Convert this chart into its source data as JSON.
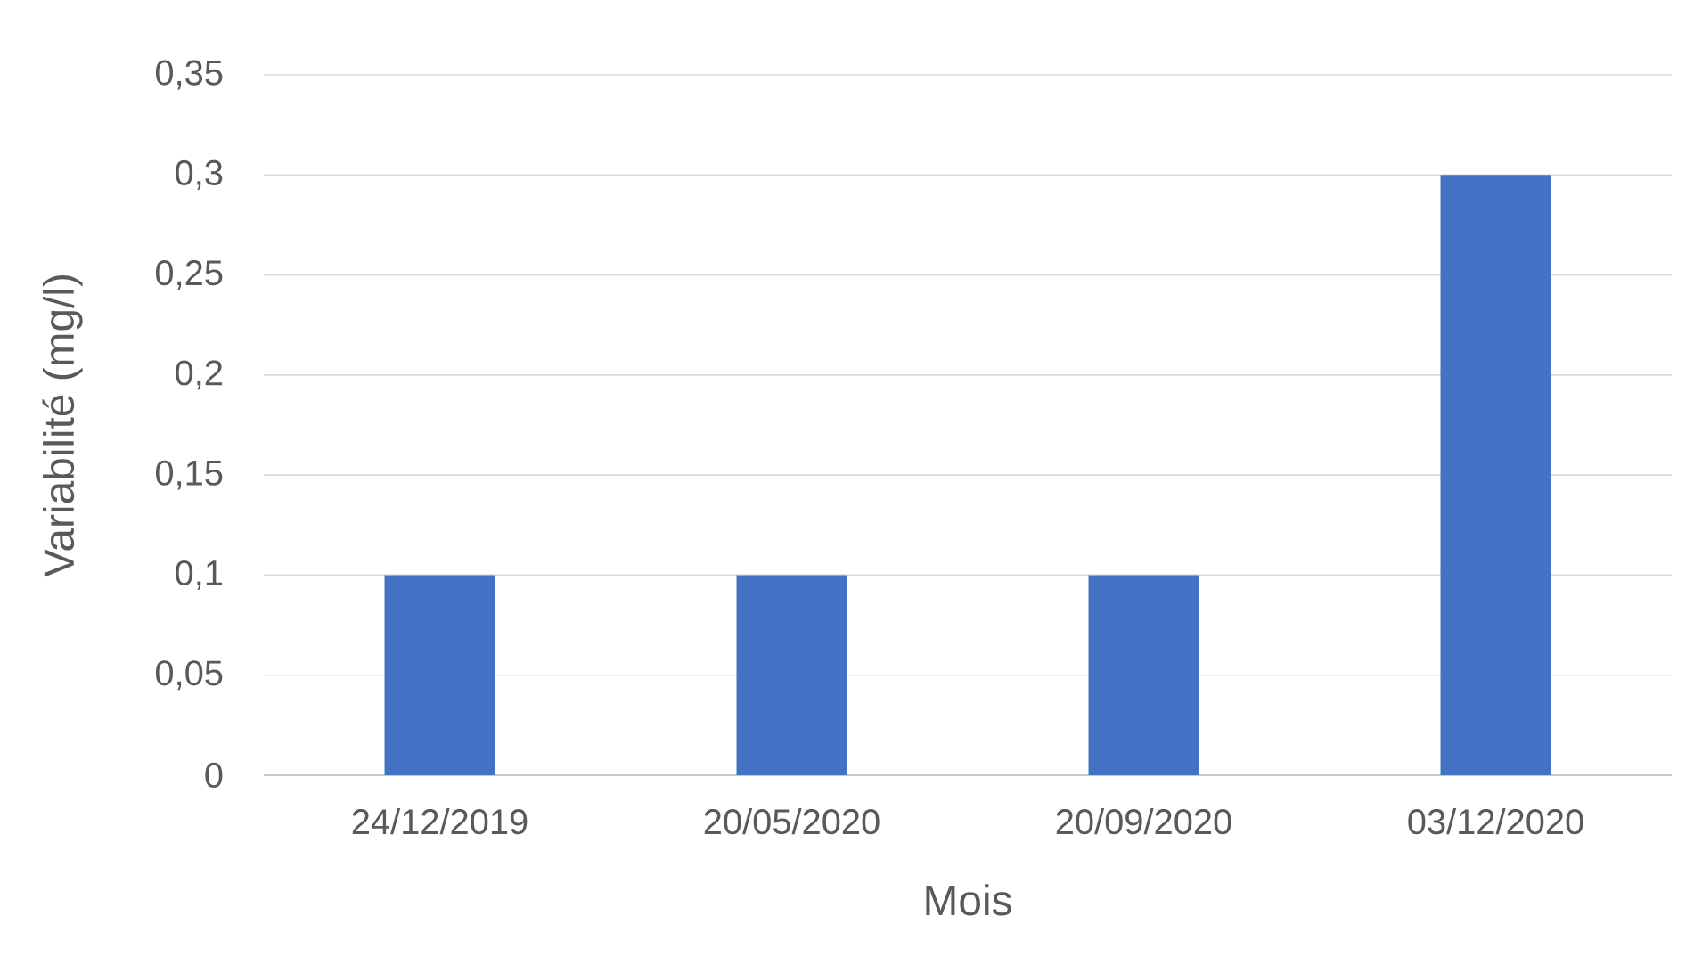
{
  "chart_data": {
    "type": "bar",
    "xlabel": "Mois",
    "ylabel": "Variabilité (mg/l)",
    "categories": [
      "24/12/2019",
      "20/05/2020",
      "20/09/2020",
      "03/12/2020"
    ],
    "values": [
      0.1,
      0.1,
      0.1,
      0.3
    ],
    "color": "#4472c4",
    "ylim": [
      0,
      0.35
    ],
    "yticks": [
      0,
      {
        "value": 0.05,
        "label": "0,05"
      },
      {
        "value": 0.1,
        "label": "0,1"
      },
      {
        "value": 0.15,
        "label": "0,15"
      },
      {
        "value": 0.2,
        "label": "0,2"
      },
      {
        "value": 0.25,
        "label": "0,25"
      },
      {
        "value": 0.3,
        "label": "0,3"
      },
      {
        "value": 0.35,
        "label": "0,35"
      }
    ],
    "grid": "y"
  }
}
